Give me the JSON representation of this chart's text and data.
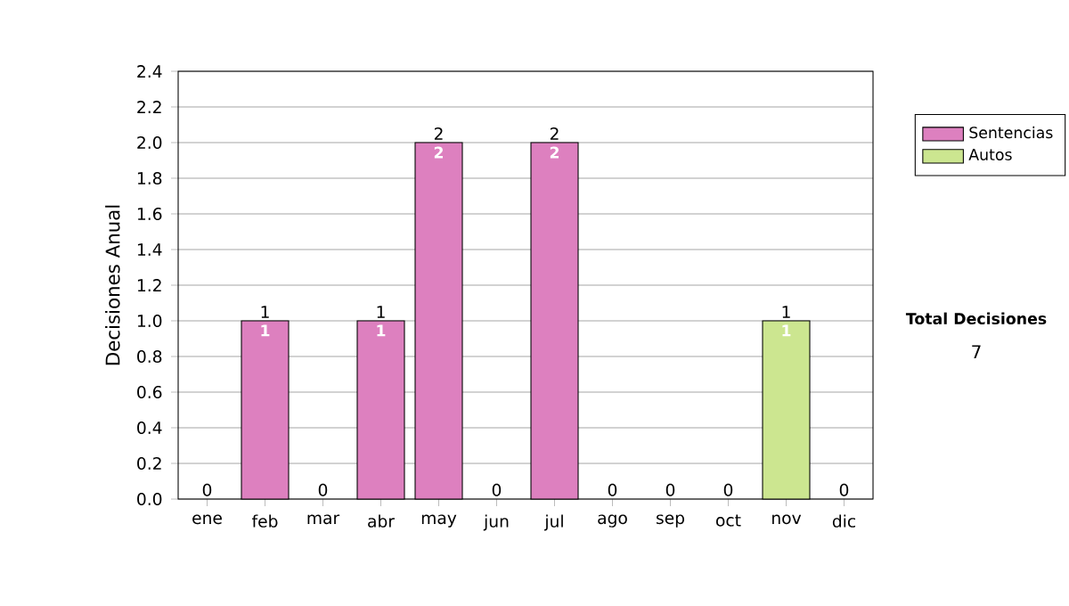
{
  "chart_data": {
    "type": "bar",
    "stacked": true,
    "ylabel": "Decisiones Anual",
    "categories": [
      "ene",
      "feb",
      "mar",
      "abr",
      "may",
      "jun",
      "jul",
      "ago",
      "sep",
      "oct",
      "nov",
      "dic"
    ],
    "series": [
      {
        "name": "Sentencias",
        "color": "#dd80bf",
        "values": [
          0,
          1,
          0,
          1,
          2,
          0,
          2,
          0,
          0,
          0,
          0,
          0
        ],
        "value_labels": [
          null,
          "1",
          null,
          "1",
          "2",
          null,
          "2",
          null,
          null,
          null,
          null,
          null
        ]
      },
      {
        "name": "Autos",
        "color": "#cce690",
        "values": [
          0,
          0,
          0,
          0,
          0,
          0,
          0,
          0,
          0,
          0,
          1,
          0
        ],
        "value_labels": [
          null,
          null,
          null,
          null,
          null,
          null,
          null,
          null,
          null,
          null,
          "1",
          null
        ]
      }
    ],
    "totals": [
      "0",
      "1",
      "0",
      "1",
      "2",
      "0",
      "2",
      "0",
      "0",
      "0",
      "1",
      "0"
    ],
    "ylim": [
      0,
      2.4
    ],
    "yticks": [
      {
        "value": 0,
        "label": "0.0"
      },
      0.2,
      0.4,
      0.6,
      0.8,
      {
        "value": 1,
        "label": "1.0"
      },
      1.2,
      1.4,
      1.6,
      1.8,
      {
        "value": 2,
        "label": "2.0"
      },
      2.2,
      2.4
    ],
    "grid": "y",
    "legend": "right",
    "annotations": [
      "Total Decisiones",
      "7"
    ]
  }
}
